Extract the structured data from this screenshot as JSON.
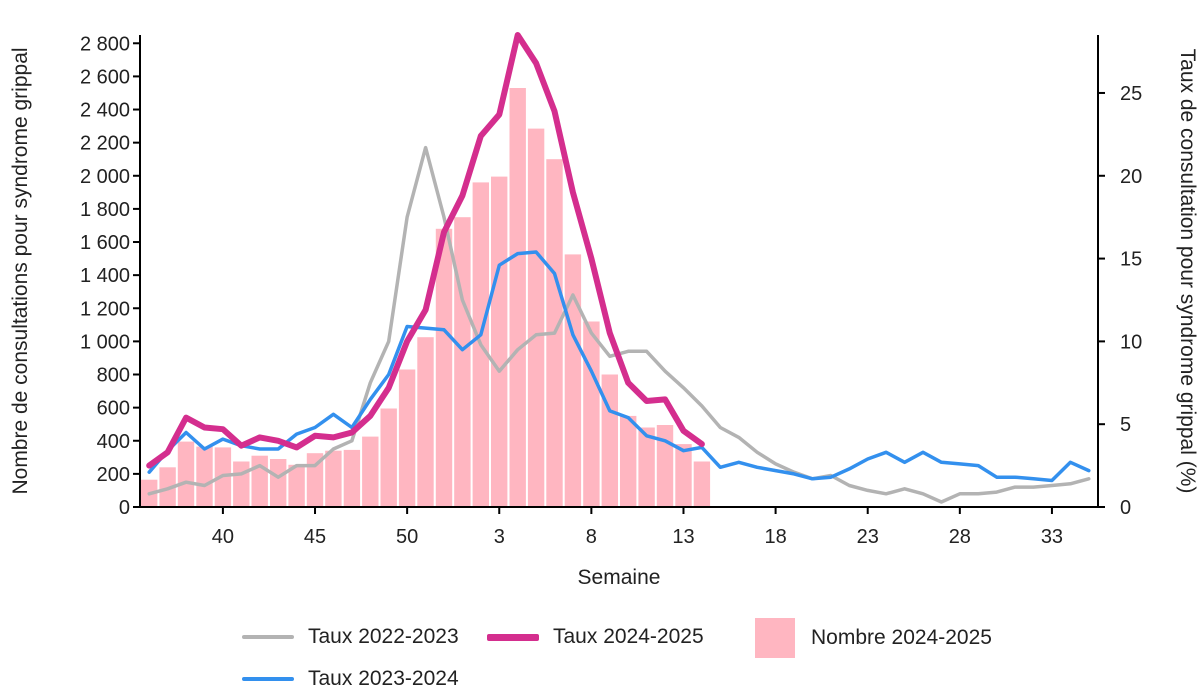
{
  "chart_data": {
    "type": "bar+line",
    "xlabel": "Semaine",
    "ylabel_left": "Nombre de consultations pour syndrome grippal",
    "ylabel_right": "Taux de consultation pour syndrome grippal (%)",
    "ylim_left": [
      0,
      2850
    ],
    "ylim_right": [
      0,
      28.5
    ],
    "left_ticks": [
      "0",
      "200",
      "400",
      "600",
      "800",
      "1 000",
      "1 200",
      "1 400",
      "1 600",
      "1 800",
      "2 000",
      "2 200",
      "2 400",
      "2 600",
      "2 800"
    ],
    "right_ticks": [
      "0",
      "5",
      "10",
      "15",
      "20",
      "25"
    ],
    "x_tick_labels": [
      "40",
      "45",
      "50",
      "3",
      "8",
      "13",
      "18",
      "23",
      "28",
      "33"
    ],
    "weeks": [
      36,
      37,
      38,
      39,
      40,
      41,
      42,
      43,
      44,
      45,
      46,
      47,
      48,
      49,
      50,
      51,
      52,
      1,
      2,
      3,
      4,
      5,
      6,
      7,
      8,
      9,
      10,
      11,
      12,
      13,
      14,
      15,
      16,
      17,
      18,
      19,
      20,
      21,
      22,
      23,
      24,
      25,
      26,
      27,
      28,
      29,
      30,
      31,
      32,
      33,
      34,
      35
    ],
    "bars": {
      "name": "Nombre 2024-2025",
      "color": "#ffb6c1",
      "values": [
        165,
        240,
        395,
        365,
        360,
        275,
        310,
        290,
        255,
        325,
        340,
        345,
        425,
        595,
        830,
        1025,
        1680,
        1750,
        1960,
        1995,
        2530,
        2285,
        2100,
        1525,
        1120,
        800,
        550,
        480,
        495,
        380,
        275
      ]
    },
    "series": [
      {
        "name": "Taux 2022-2023",
        "color": "#b3b3b3",
        "width": 3.5,
        "values": [
          0.8,
          1.1,
          1.5,
          1.3,
          1.9,
          2.0,
          2.5,
          1.8,
          2.5,
          2.5,
          3.5,
          4.0,
          7.5,
          10.0,
          17.5,
          21.7,
          17.5,
          12.5,
          9.8,
          8.2,
          9.5,
          10.4,
          10.5,
          12.8,
          10.5,
          9.1,
          9.4,
          9.4,
          8.2,
          7.2,
          6.1,
          4.8,
          4.2,
          3.3,
          2.6,
          2.1,
          1.7,
          1.9,
          1.3,
          1.0,
          0.8,
          1.1,
          0.8,
          0.3,
          0.8,
          0.8,
          0.9,
          1.2,
          1.2,
          1.3,
          1.4,
          1.7
        ]
      },
      {
        "name": "Taux 2023-2024",
        "color": "#3390ee",
        "width": 3.5,
        "values": [
          2.1,
          3.4,
          4.5,
          3.5,
          4.1,
          3.7,
          3.5,
          3.5,
          4.4,
          4.8,
          5.6,
          4.8,
          6.5,
          8.0,
          10.9,
          10.8,
          10.7,
          9.5,
          10.4,
          14.6,
          15.3,
          15.4,
          14.1,
          10.4,
          8.2,
          5.8,
          5.4,
          4.3,
          4.0,
          3.4,
          3.6,
          2.4,
          2.7,
          2.4,
          2.2,
          2.0,
          1.7,
          1.8,
          2.3,
          2.9,
          3.3,
          2.7,
          3.3,
          2.7,
          2.6,
          2.5,
          1.8,
          1.8,
          1.7,
          1.6,
          2.7,
          2.2
        ]
      },
      {
        "name": "Taux 2024-2025",
        "color": "#d42e8e",
        "width": 6,
        "values": [
          2.5,
          3.3,
          5.4,
          4.8,
          4.7,
          3.7,
          4.2,
          4.0,
          3.6,
          4.3,
          4.2,
          4.5,
          5.5,
          7.2,
          10.0,
          11.9,
          16.6,
          18.8,
          22.4,
          23.7,
          28.5,
          26.8,
          23.9,
          19.0,
          15.0,
          10.5,
          7.5,
          6.4,
          6.5,
          4.6,
          3.8
        ]
      }
    ],
    "legend": [
      {
        "label": "Taux 2022-2023",
        "kind": "line",
        "color": "#b3b3b3"
      },
      {
        "label": "Taux 2024-2025",
        "kind": "thick-line",
        "color": "#d42e8e"
      },
      {
        "label": "Nombre 2024-2025",
        "kind": "box",
        "color": "#ffb6c1"
      },
      {
        "label": "Taux 2023-2024",
        "kind": "line",
        "color": "#3390ee"
      }
    ]
  }
}
